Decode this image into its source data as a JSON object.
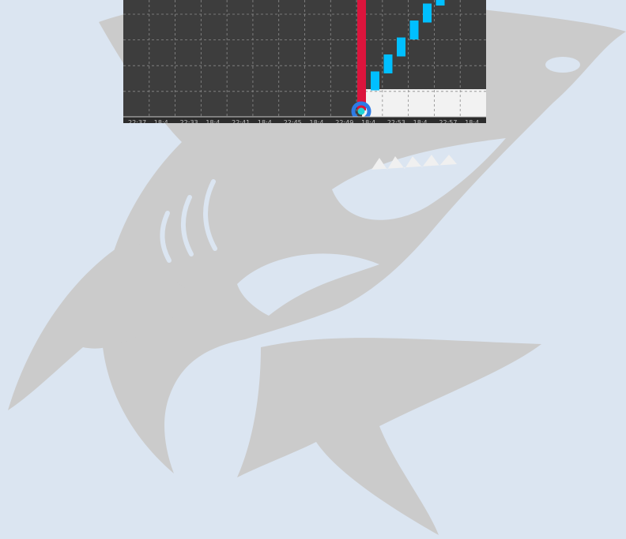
{
  "colors": {
    "background": "#dbe5f1",
    "shark": "#cbcbcb",
    "chart_bg": "#3d3d3d",
    "chart_light_bg": "#f2f2f2",
    "grid": "#8c8c8c",
    "bar_accent": "#00bfff",
    "marker_line": "#dc143c",
    "marker_ring": "#2d7be6",
    "marker_dot": "#21d6d6"
  },
  "icons": {
    "watermark": "shark-logo",
    "marker": "target-ring-icon"
  },
  "chart_data": {
    "type": "bar",
    "x_tick_labels": [
      "22:37",
      "18:4",
      "22:33",
      "18:4",
      "22:41",
      "18:4",
      "22:45",
      "18:4",
      "22:49",
      "18:4",
      "22:53",
      "18:4",
      "22:57",
      "18:4"
    ],
    "series": [
      {
        "values": [
          1,
          2,
          3,
          4,
          5,
          6
        ]
      }
    ],
    "ylim": [
      0,
      6
    ],
    "grid": true
  }
}
